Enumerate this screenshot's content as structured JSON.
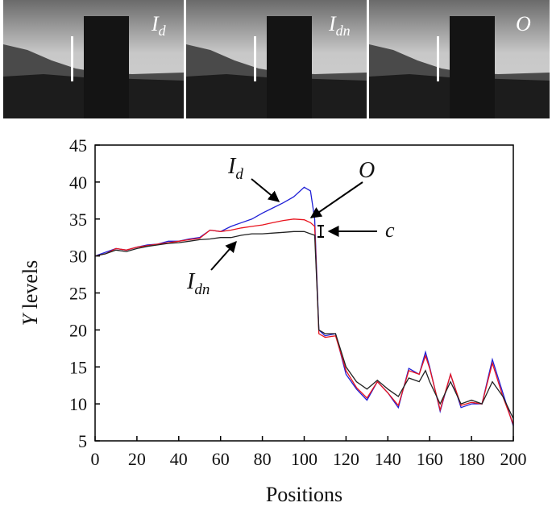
{
  "images": [
    {
      "main": "I",
      "sub": "d"
    },
    {
      "main": "I",
      "sub": "dn"
    },
    {
      "main": "O",
      "sub": ""
    }
  ],
  "chart_data": {
    "type": "line",
    "xlabel": "Positions",
    "ylabel": {
      "italic": "Y",
      "rest": " levels"
    },
    "xlim": [
      0,
      200
    ],
    "ylim": [
      5,
      45
    ],
    "xticks": [
      0,
      20,
      40,
      60,
      80,
      100,
      120,
      140,
      160,
      180,
      200
    ],
    "yticks": [
      5,
      10,
      15,
      20,
      25,
      30,
      35,
      40,
      45
    ],
    "annotations": [
      "c"
    ],
    "x": [
      0,
      5,
      10,
      15,
      20,
      25,
      30,
      35,
      40,
      45,
      50,
      55,
      60,
      65,
      70,
      75,
      80,
      85,
      90,
      95,
      100,
      103,
      105,
      107,
      110,
      115,
      120,
      125,
      130,
      135,
      140,
      145,
      150,
      155,
      158,
      160,
      165,
      170,
      175,
      180,
      185,
      190,
      195,
      200
    ],
    "series": [
      {
        "label": {
          "main": "I",
          "sub": "d"
        },
        "color": "#1f1fd6",
        "values": [
          30,
          30.5,
          31,
          30.8,
          31.2,
          31.5,
          31.6,
          32,
          32,
          32.3,
          32.5,
          33.5,
          33.3,
          34,
          34.5,
          35,
          35.8,
          36.5,
          37.2,
          38,
          39.3,
          38.8,
          35,
          20,
          19.2,
          19.5,
          14,
          12,
          10.5,
          13,
          11.5,
          9.5,
          14.8,
          14,
          17,
          15,
          9,
          14,
          9.5,
          10,
          10,
          16,
          11.5,
          7
        ]
      },
      {
        "label": {
          "main": "O",
          "sub": ""
        },
        "color": "#e8141e",
        "values": [
          30,
          30.3,
          31,
          30.8,
          31.2,
          31.4,
          31.6,
          31.8,
          32,
          32.2,
          32.4,
          33.5,
          33.3,
          33.5,
          33.8,
          34,
          34.2,
          34.5,
          34.8,
          35,
          34.9,
          34.5,
          34,
          19.5,
          19,
          19.2,
          14.5,
          12.2,
          10.8,
          13,
          11.5,
          9.8,
          14.5,
          14,
          16.5,
          14.8,
          9.2,
          14,
          9.8,
          10.2,
          10,
          15.5,
          11,
          7.2
        ]
      },
      {
        "label": {
          "main": "I",
          "sub": "dn"
        },
        "color": "#222222",
        "values": [
          30,
          30.3,
          30.8,
          30.6,
          31,
          31.3,
          31.5,
          31.7,
          31.8,
          32,
          32.2,
          32.3,
          32.5,
          32.5,
          32.8,
          33,
          33,
          33.1,
          33.2,
          33.3,
          33.3,
          33,
          32.8,
          20,
          19.5,
          19.5,
          15,
          13,
          12,
          13.2,
          12,
          11,
          13.5,
          13,
          14.5,
          13,
          10,
          13,
          10,
          10.5,
          10,
          13,
          11,
          8
        ]
      }
    ]
  }
}
